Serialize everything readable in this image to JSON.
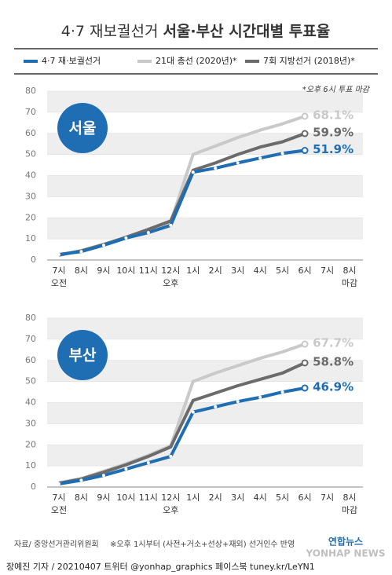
{
  "header": {
    "title_plain": "4·7 재보궐선거",
    "title_bold": "서울·부산 시간대별 투표율"
  },
  "chart_data": [
    {
      "type": "line",
      "title": "서울",
      "note": "*오후 6시 투표 마감",
      "categories": [
        "7시",
        "8시",
        "9시",
        "10시",
        "11시",
        "12시",
        "1시",
        "2시",
        "3시",
        "4시",
        "5시",
        "6시",
        "7시",
        "8시"
      ],
      "x_sublabels": [
        "오전",
        null,
        null,
        null,
        null,
        "오후",
        null,
        null,
        null,
        null,
        null,
        null,
        null,
        "마감"
      ],
      "ylim": [
        0,
        80
      ],
      "yticks": [
        0,
        10,
        20,
        30,
        40,
        50,
        60,
        70,
        80
      ],
      "grid": "bands",
      "series": [
        {
          "name": "4·7 재·보궐선거",
          "color": "#1f6db3",
          "values": [
            2.6,
            4,
            7,
            10.4,
            13,
            16.4,
            41.6,
            43.5,
            46,
            48.3,
            50.5,
            51.9,
            null,
            null
          ],
          "value_labels": [
            null,
            null,
            null,
            null,
            null,
            null,
            null,
            null,
            null,
            null,
            null,
            "51.9%",
            null,
            null
          ]
        },
        {
          "name": "21대 총선 (2020년)*",
          "color": "#c9c9c9",
          "values": [
            2.5,
            4.5,
            7.5,
            10.5,
            14,
            18,
            50,
            54,
            58,
            61.5,
            64.5,
            68.1,
            null,
            null
          ],
          "value_labels": [
            null,
            null,
            null,
            null,
            null,
            null,
            null,
            null,
            null,
            null,
            null,
            "68.1%",
            null,
            null
          ]
        },
        {
          "name": "7회 지방선거 (2018년)*",
          "color": "#6b6b6b",
          "values": [
            2.3,
            4.3,
            7.3,
            10.8,
            14.5,
            18.5,
            42.5,
            46,
            50,
            53.5,
            56,
            59.9,
            null,
            null
          ],
          "value_labels": [
            null,
            null,
            null,
            null,
            null,
            null,
            null,
            null,
            null,
            null,
            null,
            "59.9%",
            null,
            null
          ]
        }
      ]
    },
    {
      "type": "line",
      "title": "부산",
      "categories": [
        "7시",
        "8시",
        "9시",
        "10시",
        "11시",
        "12시",
        "1시",
        "2시",
        "3시",
        "4시",
        "5시",
        "6시",
        "7시",
        "8시"
      ],
      "x_sublabels": [
        "오전",
        null,
        null,
        null,
        null,
        "오후",
        null,
        null,
        null,
        null,
        null,
        null,
        null,
        "마감"
      ],
      "ylim": [
        0,
        80
      ],
      "yticks": [
        0,
        10,
        20,
        30,
        40,
        50,
        60,
        70,
        80
      ],
      "grid": "bands",
      "series": [
        {
          "color": "#1f6db3",
          "values": [
            1.5,
            3.2,
            5.5,
            8.5,
            11.5,
            14.5,
            35.5,
            38,
            40.5,
            42.5,
            45,
            46.9,
            null,
            null
          ],
          "value_labels": [
            null,
            null,
            null,
            null,
            null,
            null,
            null,
            null,
            null,
            null,
            null,
            "46.9%",
            null,
            null
          ]
        },
        {
          "color": "#c9c9c9",
          "values": [
            2,
            4,
            7.5,
            11,
            15,
            19.5,
            50,
            54,
            57.5,
            61,
            64,
            67.7,
            null,
            null
          ],
          "value_labels": [
            null,
            null,
            null,
            null,
            null,
            null,
            null,
            null,
            null,
            null,
            null,
            "67.7%",
            null,
            null
          ]
        },
        {
          "color": "#6b6b6b",
          "values": [
            1.8,
            3.8,
            7,
            10.5,
            14.5,
            19,
            41,
            44.5,
            48,
            51,
            54,
            58.8,
            null,
            null
          ],
          "value_labels": [
            null,
            null,
            null,
            null,
            null,
            null,
            null,
            null,
            null,
            null,
            null,
            "58.8%",
            null,
            null
          ]
        }
      ]
    }
  ],
  "footer": {
    "source": "자료/ 중앙선거관리위원회",
    "remark": "※오후 1시부터 (사전+거소+선상+재외) 선거인수 반영",
    "logo": "연합뉴스",
    "watermark": "YONHAP NEWS",
    "credit": "장예진 기자 / 20210407 트위터 @yonhap_graphics  페이스북 tuney.kr/LeYN1"
  }
}
